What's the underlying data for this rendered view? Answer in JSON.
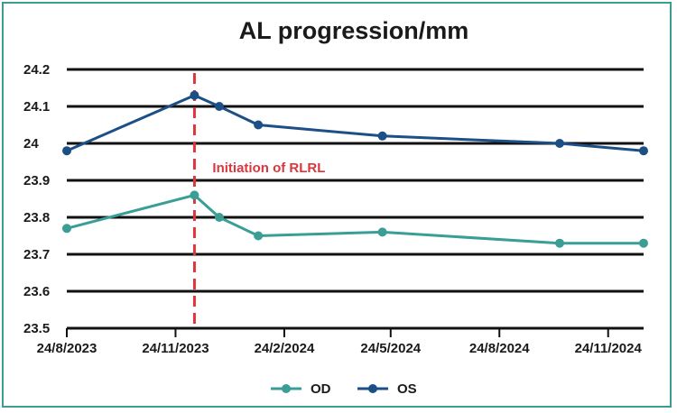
{
  "chart_data": {
    "type": "line",
    "title": "AL progression/mm",
    "xlabel": "",
    "ylabel": "",
    "ylim": [
      23.5,
      24.2
    ],
    "yticks": [
      "23.5",
      "23.6",
      "23.7",
      "23.8",
      "23.9",
      "24",
      "24.1",
      "24.2"
    ],
    "xlim": [
      "2023-08-24",
      "2024-12-24"
    ],
    "xticks": [
      {
        "date": "2023-08-24",
        "label": "24/8/2023"
      },
      {
        "date": "2023-11-24",
        "label": "24/11/2023"
      },
      {
        "date": "2024-02-24",
        "label": "24/2/2024"
      },
      {
        "date": "2024-05-24",
        "label": "24/5/2024"
      },
      {
        "date": "2024-08-24",
        "label": "24/8/2024"
      },
      {
        "date": "2024-11-24",
        "label": "24/11/2024"
      }
    ],
    "grid": true,
    "legend": "bottom-center",
    "series": [
      {
        "name": "OD",
        "color": "#3a9e96",
        "points": [
          {
            "date": "2023-08-24",
            "value": 23.77
          },
          {
            "date": "2023-12-10",
            "value": 23.86
          },
          {
            "date": "2023-12-31",
            "value": 23.8
          },
          {
            "date": "2024-02-02",
            "value": 23.75
          },
          {
            "date": "2024-05-17",
            "value": 23.76
          },
          {
            "date": "2024-10-14",
            "value": 23.73
          },
          {
            "date": "2024-12-24",
            "value": 23.73
          }
        ]
      },
      {
        "name": "OS",
        "color": "#1b4f86",
        "points": [
          {
            "date": "2023-08-24",
            "value": 23.98
          },
          {
            "date": "2023-12-10",
            "value": 24.13
          },
          {
            "date": "2023-12-31",
            "value": 24.1
          },
          {
            "date": "2024-02-02",
            "value": 24.05
          },
          {
            "date": "2024-05-17",
            "value": 24.02
          },
          {
            "date": "2024-10-14",
            "value": 24.0
          },
          {
            "date": "2024-12-24",
            "value": 23.98
          }
        ]
      }
    ],
    "annotations": [
      {
        "type": "vline",
        "date": "2023-12-10",
        "label": "Initiation of RLRL",
        "color": "#d9363e",
        "style": "dashed"
      }
    ]
  }
}
